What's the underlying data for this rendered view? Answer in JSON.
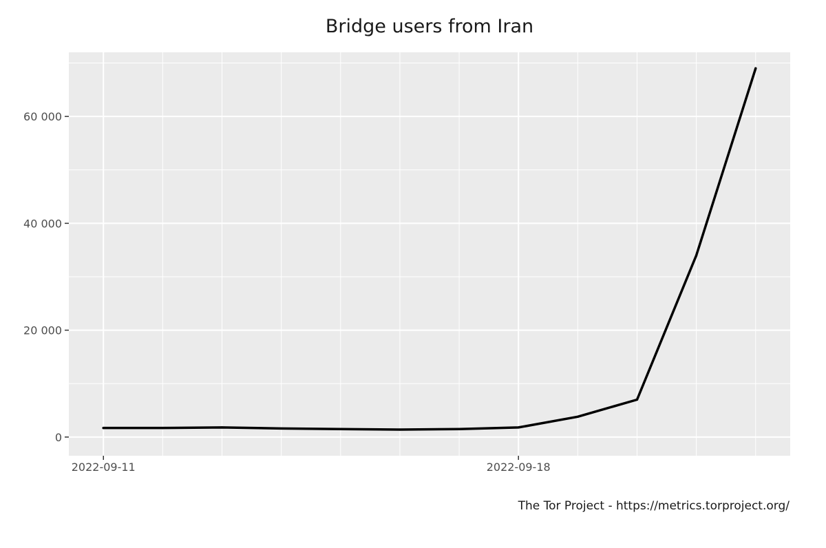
{
  "chart_data": {
    "type": "line",
    "title": "Bridge users from Iran",
    "xlabel": "",
    "ylabel": "",
    "caption": "The Tor Project - https://metrics.torproject.org/",
    "x_axis": {
      "type": "date",
      "range": [
        "2022-09-10T10:00",
        "2022-09-22T14:00"
      ],
      "tick_labels": [
        "2022-09-11",
        "2022-09-18"
      ],
      "gridlines_major_dates": [
        "2022-09-11",
        "2022-09-18"
      ],
      "gridlines_minor_dates": [
        "2022-09-12",
        "2022-09-13",
        "2022-09-14",
        "2022-09-15",
        "2022-09-16",
        "2022-09-17",
        "2022-09-19",
        "2022-09-20",
        "2022-09-21",
        "2022-09-22"
      ]
    },
    "y_axis": {
      "ylim": [
        -3500,
        72000
      ],
      "tick_values": [
        0,
        20000,
        40000,
        60000
      ],
      "tick_labels": [
        "0",
        "20 000",
        "40 000",
        "60 000"
      ],
      "minor_grid_values": [
        10000,
        30000,
        50000,
        70000
      ]
    },
    "grid": true,
    "colors": {
      "panel_background": "#ebebeb",
      "grid_major": "#ffffff",
      "line": "#000000",
      "tick_text": "#4d4d4d"
    },
    "series": [
      {
        "x": [
          "2022-09-11",
          "2022-09-12",
          "2022-09-13",
          "2022-09-14",
          "2022-09-15",
          "2022-09-16",
          "2022-09-17",
          "2022-09-18",
          "2022-09-19",
          "2022-09-20",
          "2022-09-21",
          "2022-09-22"
        ],
        "values": [
          1700,
          1700,
          1800,
          1600,
          1500,
          1400,
          1500,
          1800,
          3800,
          7000,
          34000,
          69000
        ]
      }
    ]
  }
}
